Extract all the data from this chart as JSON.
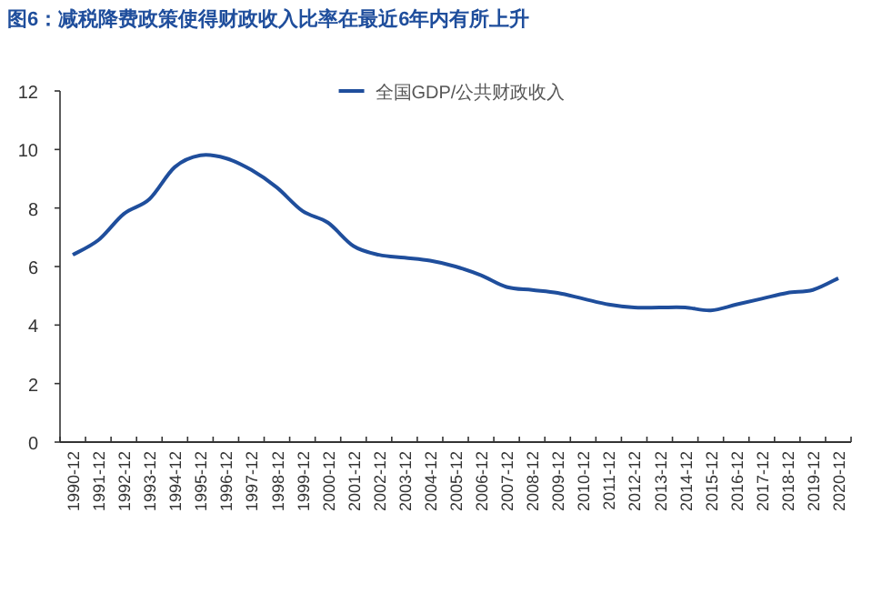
{
  "chart_data": {
    "type": "line",
    "title": "图6：减税降费政策使得财政收入比率在最近6年内有所上升",
    "categories": [
      "1990-12",
      "1991-12",
      "1992-12",
      "1993-12",
      "1994-12",
      "1995-12",
      "1996-12",
      "1997-12",
      "1998-12",
      "1999-12",
      "2000-12",
      "2001-12",
      "2002-12",
      "2003-12",
      "2004-12",
      "2005-12",
      "2006-12",
      "2007-12",
      "2008-12",
      "2009-12",
      "2010-12",
      "2011-12",
      "2012-12",
      "2013-12",
      "2014-12",
      "2015-12",
      "2016-12",
      "2017-12",
      "2018-12",
      "2019-12",
      "2020-12"
    ],
    "series": [
      {
        "name": "全国GDP/公共财政收入",
        "color": "#1f4e9c",
        "values": [
          6.4,
          6.9,
          7.8,
          8.3,
          9.4,
          9.8,
          9.7,
          9.3,
          8.7,
          7.9,
          7.5,
          6.7,
          6.4,
          6.3,
          6.2,
          6.0,
          5.7,
          5.3,
          5.2,
          5.1,
          4.9,
          4.7,
          4.6,
          4.6,
          4.6,
          4.5,
          4.7,
          4.9,
          5.1,
          5.2,
          5.6
        ]
      }
    ],
    "ylim": [
      0,
      12
    ],
    "yticks": [
      0,
      2,
      4,
      6,
      8,
      10,
      12
    ],
    "grid": false,
    "legend": "top",
    "marker": "none",
    "line_style": "solid"
  }
}
